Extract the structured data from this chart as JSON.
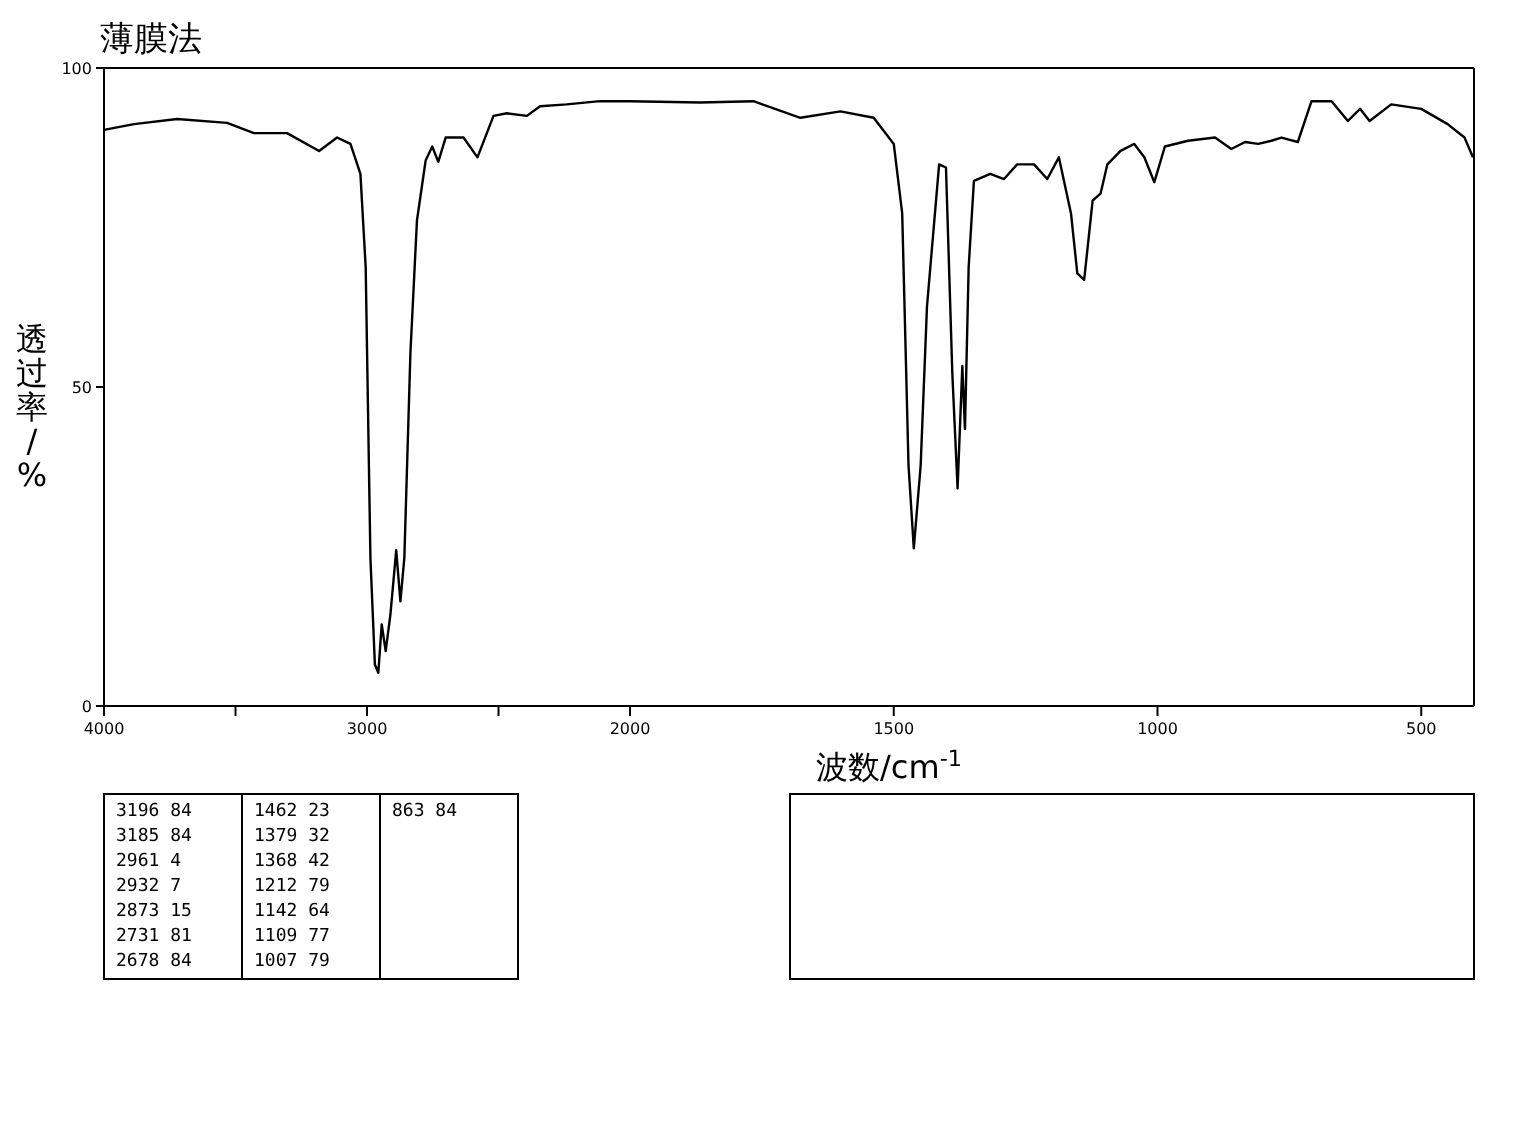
{
  "chart_data": [
    {
      "type": "line",
      "title": "薄膜法",
      "ylabel": "透过率/%",
      "xlim": [
        4000,
        2000
      ],
      "ylim": [
        0,
        100
      ],
      "xticks": [
        4000,
        {
          "value": 3500,
          "label": null
        },
        3000,
        {
          "value": 2500,
          "label": null
        }
      ],
      "yticks": [
        0,
        50,
        100
      ],
      "marker": "none",
      "line_style": "solid",
      "series": [
        {
          "color": "#000000",
          "x": [
            4000,
            3886,
            3722,
            3532,
            3430,
            3304,
            3182,
            3114,
            3063,
            3025,
            3005,
            2987,
            2970,
            2957,
            2944,
            2929,
            2911,
            2889,
            2873,
            2858,
            2835,
            2810,
            2777,
            2752,
            2729,
            2701,
            2633,
            2580,
            2519,
            2468,
            2392,
            2342,
            2241,
            2114,
            2000
          ],
          "values": [
            90.3,
            91.2,
            92.0,
            91.4,
            89.8,
            89.8,
            87.0,
            89.1,
            88.1,
            83.4,
            68.8,
            23.2,
            6.5,
            5.2,
            12.8,
            8.6,
            14.3,
            24.4,
            16.4,
            23.2,
            55.3,
            76.1,
            85.5,
            87.7,
            85.3,
            89.1,
            89.1,
            86.0,
            92.5,
            92.9,
            92.5,
            94.0,
            94.3,
            94.8,
            94.8
          ]
        }
      ],
      "annotations": [
        "3196 84",
        "3185 84",
        "2961 4",
        "2932 7",
        "2873 15",
        "2731 81",
        "2678 84",
        "1462 23",
        "1379 32",
        "1368 42",
        "1212 79",
        "1142 64",
        "1109 77",
        "1007 79",
        "863 84"
      ]
    },
    {
      "type": "line",
      "xlabel": "波数/cm$^{-1}$",
      "xlim": [
        2000,
        400
      ],
      "ylim": [
        0,
        100
      ],
      "xticks": [
        2000,
        1500,
        1000,
        500
      ],
      "tick_labels": "x",
      "marker": "none",
      "line_style": "solid",
      "series": [
        {
          "color": "#000000",
          "x": [
            2000,
            1867,
            1766,
            1677,
            1601,
            1538,
            1500,
            1484,
            1472,
            1462,
            1449,
            1437,
            1414,
            1401,
            1389,
            1379,
            1370,
            1365,
            1358,
            1348,
            1317,
            1291,
            1266,
            1234,
            1209,
            1187,
            1164,
            1152,
            1139,
            1123,
            1108,
            1095,
            1070,
            1044,
            1025,
            1006,
            986,
            942,
            891,
            860,
            834,
            809,
            784,
            765,
            734,
            708,
            670,
            639,
            616,
            598,
            557,
            500,
            450,
            418,
            402
          ],
          "values": [
            94.8,
            94.6,
            94.8,
            92.2,
            93.2,
            92.2,
            88.1,
            77.2,
            37.7,
            24.7,
            37.7,
            62.6,
            84.9,
            84.4,
            52.2,
            34.1,
            53.3,
            43.4,
            68.8,
            82.3,
            83.4,
            82.6,
            84.9,
            84.9,
            82.6,
            86.0,
            77.2,
            67.8,
            66.8,
            79.2,
            80.3,
            84.9,
            87.0,
            88.1,
            86.0,
            82.1,
            87.7,
            88.6,
            89.1,
            87.3,
            88.4,
            88.1,
            88.6,
            89.1,
            88.4,
            94.8,
            94.8,
            91.7,
            93.6,
            91.7,
            94.3,
            93.6,
            91.2,
            89.1,
            86.0
          ]
        }
      ]
    }
  ]
}
